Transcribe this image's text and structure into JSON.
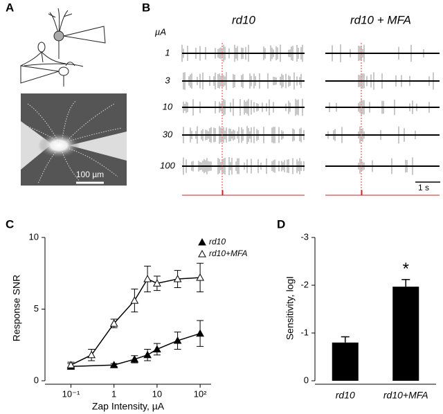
{
  "panels": {
    "A": {
      "label": "A",
      "scale_bar": "100 µm"
    },
    "B": {
      "label": "B",
      "conditions": [
        "rd10",
        "rd10 + MFA"
      ],
      "unit": "µA",
      "intensities": [
        "1",
        "3",
        "10",
        "30",
        "100"
      ],
      "time_bar": "1 s"
    }
  },
  "chart_data": [
    {
      "panel": "C",
      "type": "line",
      "x_label": "Zap Intensity, µA",
      "y_label": "Response SNR",
      "x_scale": "log",
      "xlim": [
        0.025,
        180
      ],
      "xticks": [
        {
          "value": 0.1,
          "label": "10⁻¹"
        },
        1,
        10,
        {
          "value": 100,
          "label": "10²"
        }
      ],
      "ylim": [
        0,
        10
      ],
      "yticks": [
        0,
        5,
        10
      ],
      "legend": "top-right",
      "series": [
        {
          "name": "rd10",
          "color": "#000000",
          "marker": "filled-triangle",
          "x": [
            0.1,
            1,
            3,
            6,
            10,
            30,
            100
          ],
          "values": [
            1.0,
            1.1,
            1.5,
            1.8,
            2.2,
            2.8,
            3.3
          ],
          "errors": [
            0.2,
            0.1,
            0.25,
            0.4,
            0.4,
            0.6,
            0.9
          ]
        },
        {
          "name": "rd10+MFA",
          "color": "#000000",
          "marker": "open-triangle",
          "x": [
            0.1,
            0.3,
            1,
            3,
            6,
            10,
            30,
            100
          ],
          "values": [
            1.1,
            1.8,
            4.0,
            5.6,
            7.1,
            6.8,
            7.1,
            7.2
          ],
          "errors": [
            0.2,
            0.4,
            0.3,
            0.8,
            0.9,
            0.5,
            0.6,
            1.0
          ]
        }
      ]
    },
    {
      "panel": "D",
      "type": "bar",
      "y_label": "Sensitivity, logI",
      "categories": [
        "rd10",
        "rd10+MFA"
      ],
      "values": [
        -0.8,
        -1.97
      ],
      "errors": [
        0.12,
        0.15
      ],
      "color": "#000000",
      "ylim": [
        0,
        -3
      ],
      "yticks": [
        0,
        -1,
        -2,
        -3
      ],
      "annotation": "*"
    }
  ]
}
